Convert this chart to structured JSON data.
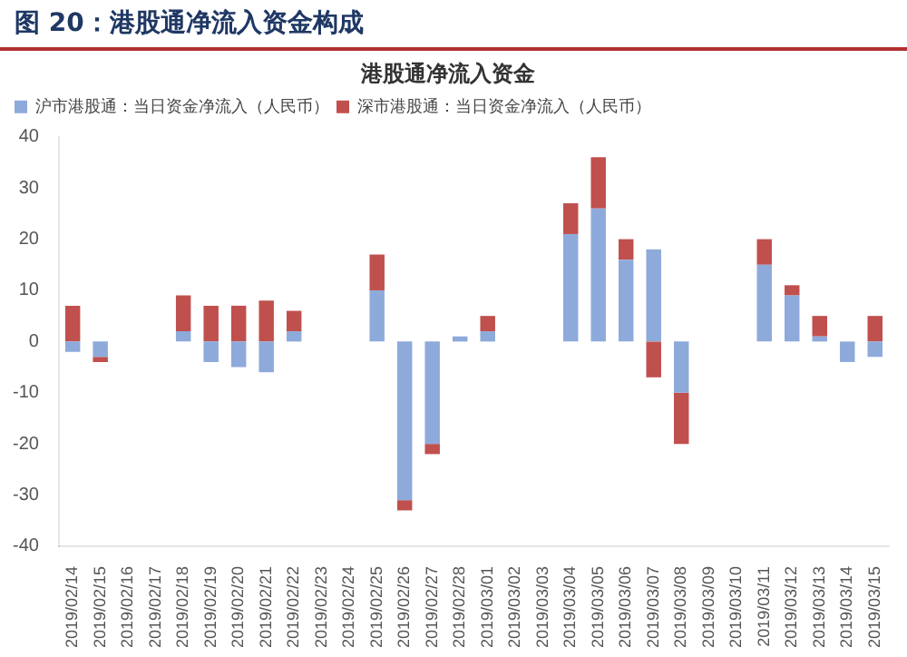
{
  "chart_data": {
    "type": "bar",
    "title": "图 20：港股通净流入资金构成",
    "subtitle": "港股通净流入资金",
    "stacked": true,
    "legend": "top left",
    "grid": false,
    "categories": [
      "2019/02/14",
      "2019/02/15",
      "2019/02/16",
      "2019/02/17",
      "2019/02/18",
      "2019/02/19",
      "2019/02/20",
      "2019/02/21",
      "2019/02/22",
      "2019/02/23",
      "2019/02/24",
      "2019/02/25",
      "2019/02/26",
      "2019/02/27",
      "2019/02/28",
      "2019/03/01",
      "2019/03/02",
      "2019/03/03",
      "2019/03/04",
      "2019/03/05",
      "2019/03/06",
      "2019/03/07",
      "2019/03/08",
      "2019/03/09",
      "2019/03/10",
      "2019/03/11",
      "2019/03/12",
      "2019/03/13",
      "2019/03/14",
      "2019/03/15"
    ],
    "series": [
      {
        "name": "沪市港股通：当日资金净流入（人民币）",
        "color": "#8eaadb",
        "values": [
          -2,
          -3,
          0,
          0,
          2,
          -4,
          -5,
          -6,
          2,
          0,
          0,
          10,
          -31,
          -20,
          1,
          2,
          0,
          0,
          21,
          26,
          16,
          18,
          -10,
          0,
          0,
          15,
          9,
          1,
          -4,
          -3
        ]
      },
      {
        "name": "深市港股通：当日资金净流入（人民币）",
        "color": "#c0504d",
        "values": [
          7,
          -1,
          0,
          0,
          7,
          7,
          7,
          8,
          4,
          0,
          0,
          7,
          -2,
          -2,
          0,
          3,
          0,
          0,
          6,
          10,
          4,
          -7,
          -10,
          0,
          0,
          5,
          2,
          4,
          0,
          5
        ]
      }
    ],
    "ylim": [
      -40,
      40
    ],
    "yticks": [
      -40,
      -30,
      -20,
      -10,
      0,
      10,
      20,
      30,
      40
    ]
  }
}
